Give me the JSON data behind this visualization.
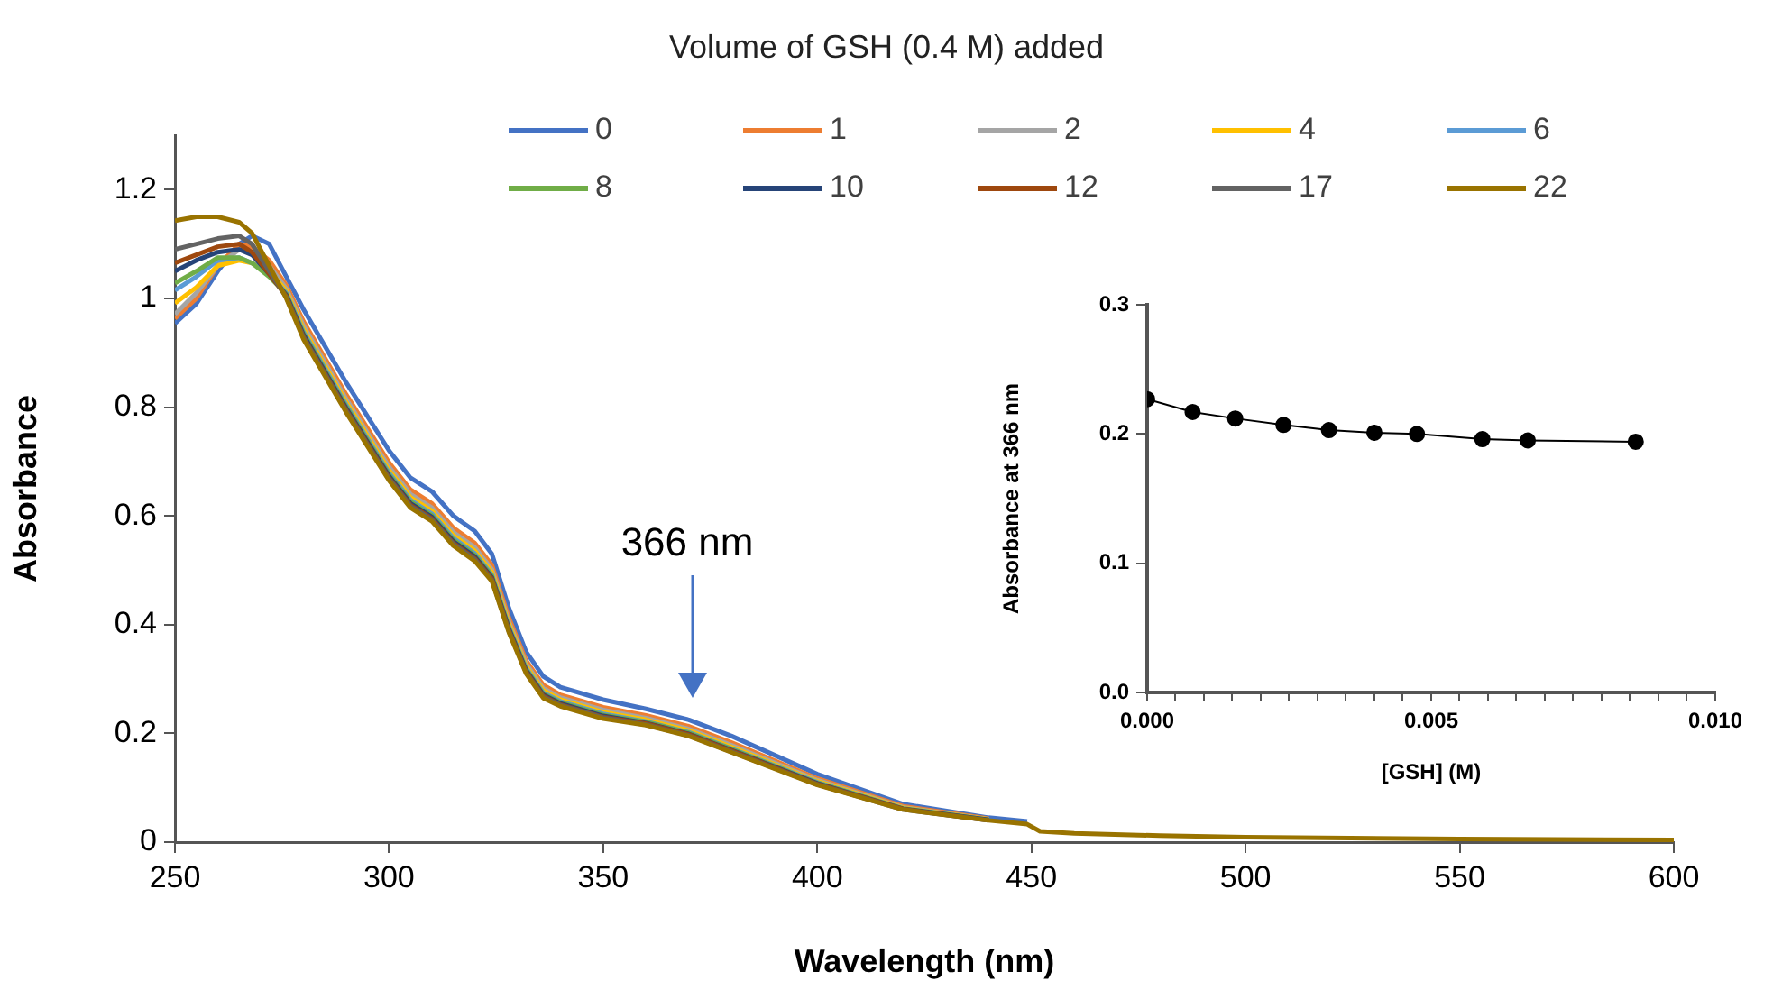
{
  "chart_data": [
    {
      "type": "line",
      "legend_title": "Volume of GSH (0.4 M) added",
      "xlabel": "Wavelength (nm)",
      "ylabel": "Absorbance",
      "x": [
        250,
        255,
        260,
        265,
        268,
        272,
        276,
        280,
        290,
        300,
        305,
        310,
        315,
        320,
        324,
        328,
        332,
        336,
        340,
        350,
        360,
        370,
        380,
        400,
        420,
        440,
        449,
        452,
        460,
        480,
        500,
        550,
        600
      ],
      "series": [
        {
          "name": "0",
          "color": "#4472c4",
          "values": [
            0.954,
            0.99,
            1.05,
            1.1,
            1.115,
            1.1,
            1.04,
            0.98,
            0.845,
            0.72,
            0.67,
            0.645,
            0.6,
            0.572,
            0.53,
            0.43,
            0.35,
            0.305,
            0.285,
            0.262,
            0.245,
            0.225,
            0.195,
            0.125,
            0.07,
            0.045,
            0.038,
            null,
            null,
            null,
            null,
            null,
            null
          ]
        },
        {
          "name": "1",
          "color": "#ed7d31",
          "values": [
            0.963,
            1.0,
            1.06,
            1.1,
            1.095,
            1.07,
            1.024,
            0.958,
            0.823,
            0.698,
            0.648,
            0.623,
            0.578,
            0.55,
            0.51,
            0.412,
            0.334,
            0.289,
            0.271,
            0.248,
            0.233,
            0.213,
            0.183,
            0.117,
            0.066,
            0.043,
            null,
            null,
            null,
            null,
            null,
            null,
            null
          ]
        },
        {
          "name": "2",
          "color": "#a5a5a5",
          "values": [
            0.971,
            1.01,
            1.06,
            1.09,
            1.085,
            1.06,
            1.018,
            0.95,
            0.815,
            0.69,
            0.64,
            0.615,
            0.57,
            0.542,
            0.502,
            0.405,
            0.328,
            0.283,
            0.266,
            0.243,
            0.228,
            0.208,
            0.178,
            0.114,
            0.064,
            0.042,
            null,
            null,
            null,
            null,
            null,
            null,
            null
          ]
        },
        {
          "name": "4",
          "color": "#ffc000",
          "values": [
            0.991,
            1.02,
            1.06,
            1.07,
            1.065,
            1.05,
            1.014,
            0.944,
            0.809,
            0.684,
            0.634,
            0.609,
            0.564,
            0.536,
            0.497,
            0.401,
            0.324,
            0.279,
            0.262,
            0.239,
            0.225,
            0.205,
            0.175,
            0.112,
            0.063,
            0.042,
            null,
            null,
            null,
            null,
            null,
            null,
            null
          ]
        },
        {
          "name": "6",
          "color": "#5b9bd5",
          "values": [
            1.015,
            1.04,
            1.07,
            1.075,
            1.065,
            1.045,
            1.01,
            0.939,
            0.804,
            0.679,
            0.629,
            0.604,
            0.559,
            0.531,
            0.492,
            0.396,
            0.32,
            0.275,
            0.259,
            0.236,
            0.222,
            0.202,
            0.172,
            0.11,
            0.062,
            0.041,
            null,
            null,
            null,
            null,
            null,
            null,
            null
          ]
        },
        {
          "name": "8",
          "color": "#70ad47",
          "values": [
            1.028,
            1.05,
            1.075,
            1.075,
            1.065,
            1.04,
            1.008,
            0.936,
            0.801,
            0.676,
            0.626,
            0.601,
            0.556,
            0.528,
            0.49,
            0.394,
            0.318,
            0.273,
            0.257,
            0.234,
            0.221,
            0.201,
            0.171,
            0.109,
            0.062,
            0.041,
            null,
            null,
            null,
            null,
            null,
            null,
            null
          ]
        },
        {
          "name": "10",
          "color": "#264478",
          "values": [
            1.05,
            1.07,
            1.085,
            1.09,
            1.08,
            1.045,
            1.006,
            0.933,
            0.798,
            0.673,
            0.623,
            0.598,
            0.553,
            0.525,
            0.487,
            0.392,
            0.316,
            0.271,
            0.255,
            0.232,
            0.219,
            0.199,
            0.169,
            0.108,
            0.061,
            0.041,
            null,
            null,
            null,
            null,
            null,
            null,
            null
          ]
        },
        {
          "name": "12",
          "color": "#9e480e",
          "values": [
            1.065,
            1.08,
            1.095,
            1.1,
            1.085,
            1.045,
            1.004,
            0.93,
            0.795,
            0.67,
            0.62,
            0.595,
            0.55,
            0.522,
            0.485,
            0.389,
            0.314,
            0.269,
            0.253,
            0.23,
            0.218,
            0.198,
            0.168,
            0.107,
            0.061,
            0.04,
            null,
            null,
            null,
            null,
            null,
            null,
            null
          ]
        },
        {
          "name": "17",
          "color": "#636363",
          "values": [
            1.09,
            1.1,
            1.11,
            1.115,
            1.1,
            1.05,
            1.002,
            0.928,
            0.793,
            0.668,
            0.618,
            0.593,
            0.548,
            0.52,
            0.482,
            0.387,
            0.312,
            0.267,
            0.252,
            0.229,
            0.216,
            0.196,
            0.166,
            0.106,
            0.06,
            0.04,
            null,
            null,
            null,
            null,
            null,
            null,
            null
          ]
        },
        {
          "name": "22",
          "color": "#997300",
          "values": [
            1.143,
            1.15,
            1.15,
            1.14,
            1.12,
            1.06,
            1.0,
            0.925,
            0.79,
            0.665,
            0.615,
            0.59,
            0.545,
            0.517,
            0.48,
            0.385,
            0.31,
            0.265,
            0.25,
            0.227,
            0.215,
            0.195,
            0.165,
            0.105,
            0.06,
            0.04,
            0.033,
            0.02,
            0.016,
            0.012,
            0.009,
            0.006,
            0.004
          ]
        }
      ],
      "xlim": [
        250,
        600
      ],
      "xticks": [
        250,
        300,
        350,
        400,
        450,
        500,
        550,
        600
      ],
      "ylim": [
        0,
        1.3
      ],
      "yticks": [
        0,
        0.2,
        0.4,
        0.6,
        0.8,
        1,
        1.2
      ],
      "annotations": [
        "366 nm"
      ],
      "grid": false,
      "legend": "top",
      "marker": "none",
      "line_style": "solid"
    },
    {
      "type": "line",
      "xlabel": "[GSH] (M)",
      "ylabel": "Absorbance at 366 nm",
      "x": [
        0,
        0.0008,
        0.00155,
        0.0024,
        0.0032,
        0.004,
        0.00475,
        0.0059,
        0.0067,
        0.0086
      ],
      "series": [
        {
          "color": "#000000",
          "values": [
            0.227,
            0.217,
            0.212,
            0.207,
            0.203,
            0.201,
            0.2,
            0.196,
            0.195,
            0.194
          ]
        }
      ],
      "xlim": [
        0,
        0.01
      ],
      "xticks": [
        {
          "value": 0,
          "label": "0.000"
        },
        {
          "value": 0.0005,
          "label": null
        },
        {
          "value": 0.001,
          "label": null
        },
        {
          "value": 0.0015,
          "label": null
        },
        {
          "value": 0.002,
          "label": null
        },
        {
          "value": 0.0025,
          "label": null
        },
        {
          "value": 0.003,
          "label": null
        },
        {
          "value": 0.0035,
          "label": null
        },
        {
          "value": 0.004,
          "label": null
        },
        {
          "value": 0.0045,
          "label": null
        },
        {
          "value": 0.005,
          "label": "0.005"
        },
        {
          "value": 0.0055,
          "label": null
        },
        {
          "value": 0.006,
          "label": null
        },
        {
          "value": 0.0065,
          "label": null
        },
        {
          "value": 0.007,
          "label": null
        },
        {
          "value": 0.0075,
          "label": null
        },
        {
          "value": 0.008,
          "label": null
        },
        {
          "value": 0.0085,
          "label": null
        },
        {
          "value": 0.009,
          "label": null
        },
        {
          "value": 0.0095,
          "label": null
        },
        {
          "value": 0.01,
          "label": "0.010"
        }
      ],
      "ylim": [
        0,
        0.3
      ],
      "yticks": [
        {
          "value": 0,
          "label": "0.0"
        },
        {
          "value": 0.1,
          "label": "0.1"
        },
        {
          "value": 0.2,
          "label": "0.2"
        },
        {
          "value": 0.3,
          "label": "0.3"
        }
      ],
      "grid": false,
      "legend": false,
      "marker": "circle",
      "line_style": "solid"
    }
  ]
}
